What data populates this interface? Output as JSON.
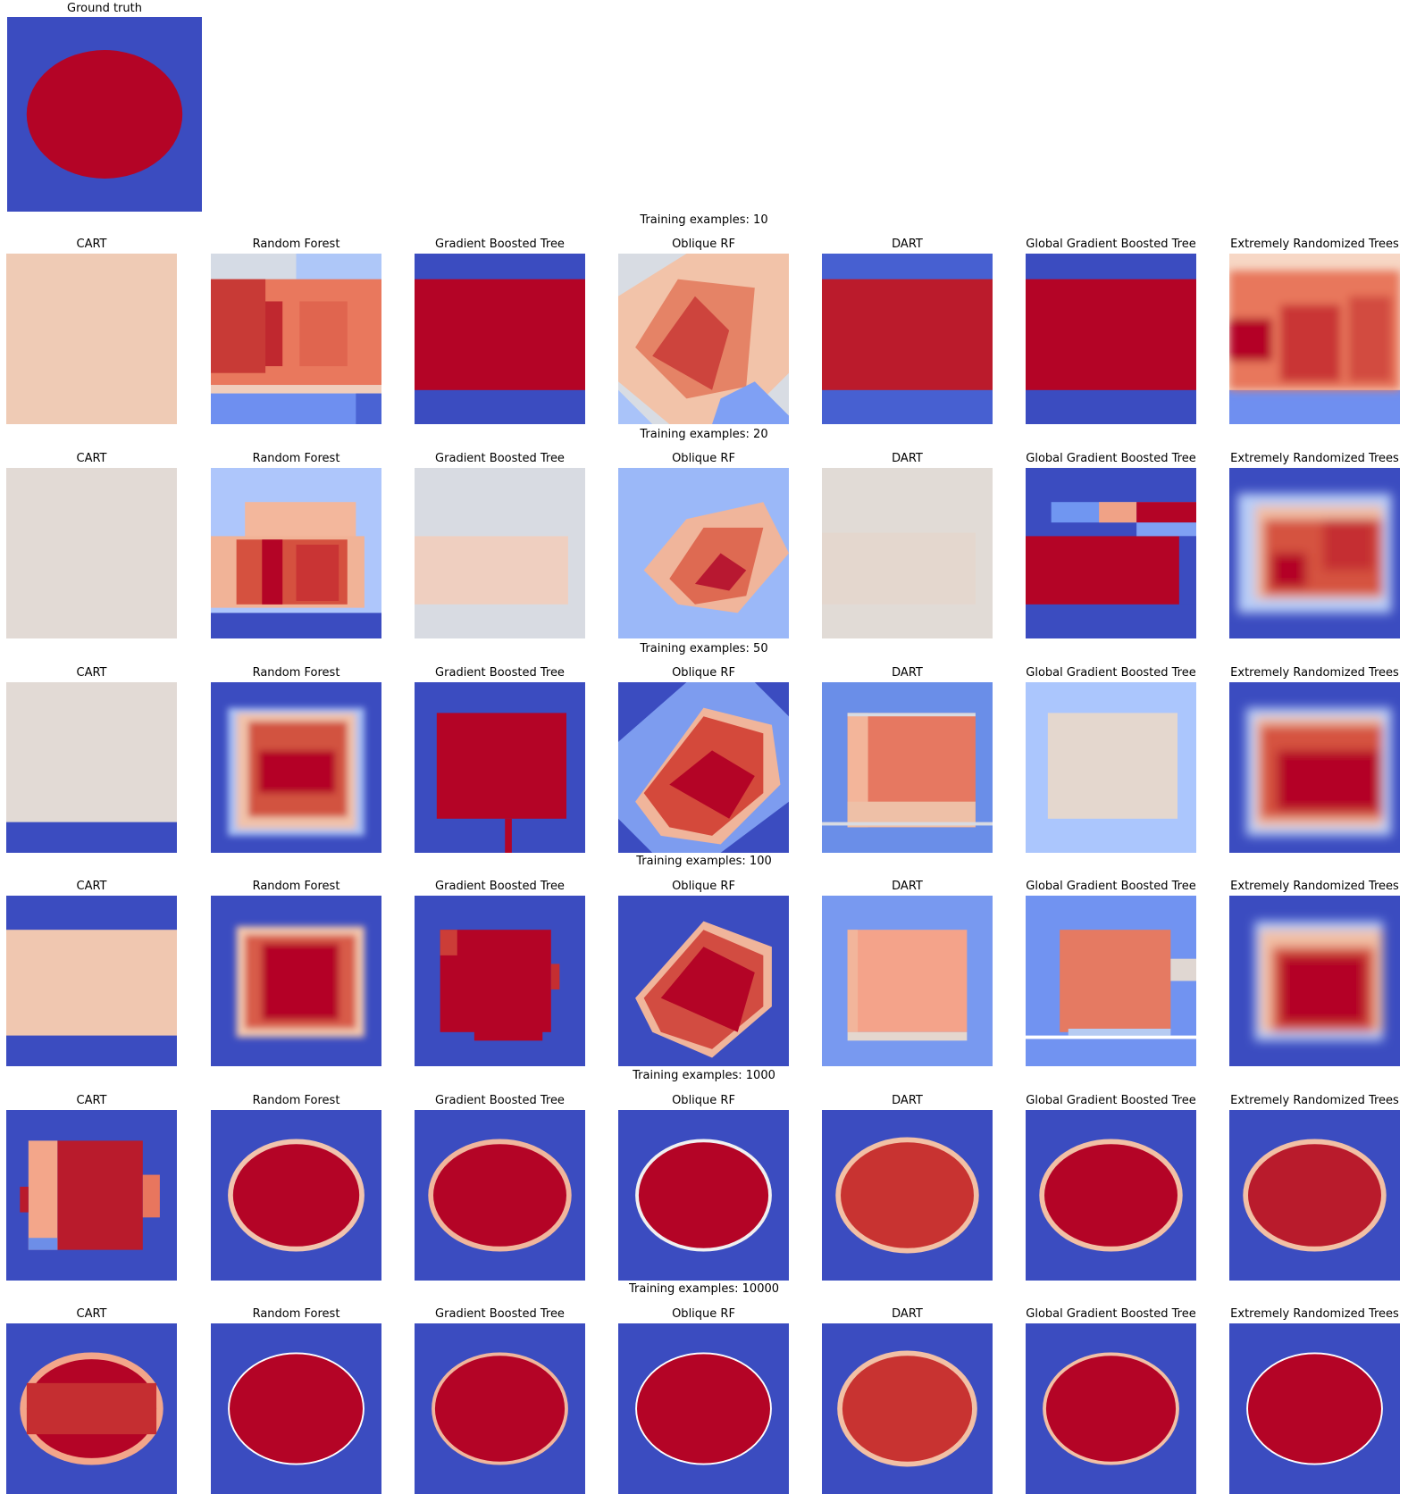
{
  "colors": {
    "blue": "#3b4cc0",
    "blue2": "#4a61d1",
    "blue3": "#6f92f3",
    "light_blue": "#aac7fd",
    "neutral": "#dcdddd",
    "light_red": "#f6bfa6",
    "red2": "#e26952",
    "red": "#b40426"
  },
  "chart_data": {
    "type": "heatmap",
    "colormap": "coolwarm",
    "ground_truth": {
      "title": "Ground truth",
      "shape": "ellipse",
      "inside": "red",
      "outside": "blue"
    },
    "models": [
      "CART",
      "Random Forest",
      "Gradient Boosted Tree",
      "Oblique RF",
      "DART",
      "Global Gradient Boosted Tree",
      "Extremely Randomized Trees"
    ],
    "rows": [
      {
        "title": "Training examples: 10",
        "n": 10
      },
      {
        "title": "Training examples: 20",
        "n": 20
      },
      {
        "title": "Training examples: 50",
        "n": 50
      },
      {
        "title": "Training examples: 100",
        "n": 100
      },
      {
        "title": "Training examples: 1000",
        "n": 1000
      },
      {
        "title": "Training examples: 10000",
        "n": 10000
      }
    ],
    "grid": false,
    "axes": "off"
  }
}
